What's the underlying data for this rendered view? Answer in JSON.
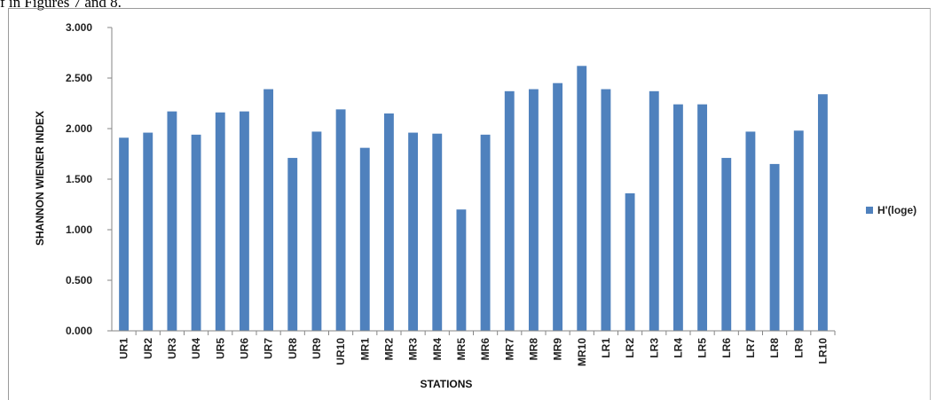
{
  "caption": "f in Figures 7 and 8.",
  "chart_data": {
    "type": "bar",
    "categories": [
      "UR1",
      "UR2",
      "UR3",
      "UR4",
      "UR5",
      "UR6",
      "UR7",
      "UR8",
      "UR9",
      "UR10",
      "MR1",
      "MR2",
      "MR3",
      "MR4",
      "MR5",
      "MR6",
      "MR7",
      "MR8",
      "MR9",
      "MR10",
      "LR1",
      "LR2",
      "LR3",
      "LR4",
      "LR5",
      "LR6",
      "LR7",
      "LR8",
      "LR9",
      "LR10"
    ],
    "series": [
      {
        "name": "H'(loge)",
        "color": "#4f81bd",
        "values": [
          1.91,
          1.96,
          2.17,
          1.94,
          2.16,
          2.17,
          2.39,
          1.71,
          1.97,
          2.19,
          1.81,
          2.15,
          1.96,
          1.95,
          1.2,
          1.94,
          2.37,
          2.39,
          2.45,
          2.62,
          2.39,
          1.36,
          2.37,
          2.24,
          2.24,
          1.71,
          1.97,
          1.65,
          1.98,
          2.34
        ]
      }
    ],
    "xlabel": "STATIONS",
    "ylabel": "SHANNON WIENER INDEX",
    "ylim": [
      0,
      3
    ],
    "yticks": [
      "0.000",
      "0.500",
      "1.000",
      "1.500",
      "2.000",
      "2.500",
      "3.000"
    ],
    "grid": false,
    "legend": "right"
  }
}
